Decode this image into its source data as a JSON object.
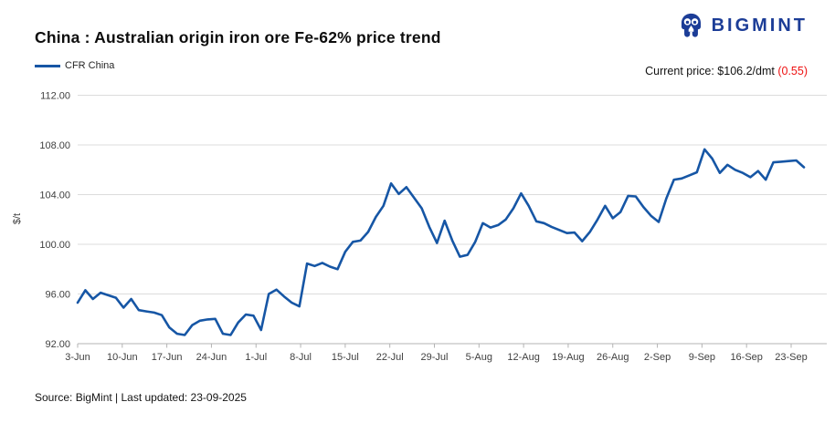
{
  "header": {
    "title": "China : Australian origin iron ore Fe-62% price trend",
    "brand": "BIGMINT"
  },
  "legend": {
    "series_label": "CFR China"
  },
  "current_price": {
    "text": "Current price: $106.2/dmt",
    "change": "(0.55)"
  },
  "footer": {
    "source": "Source: BigMint | Last updated: 23-09-2025"
  },
  "colors": {
    "line": "#1656a5",
    "brand_blue": "#1c3d97",
    "change_red": "#ee1111",
    "grid": "#dcdcdc",
    "axis_line": "#b3b3b3",
    "axis_text": "#404040"
  },
  "chart_data": {
    "type": "line",
    "title": "China : Australian origin iron ore Fe-62% price trend",
    "ylabel": "$/t",
    "ylim": [
      92,
      112
    ],
    "y_ticks": [
      112,
      108,
      104,
      100,
      96,
      92
    ],
    "grid": "horizontal",
    "legend_position": "top-left",
    "x_tick_labels": [
      "3-Jun",
      "10-Jun",
      "17-Jun",
      "24-Jun",
      "1-Jul",
      "8-Jul",
      "15-Jul",
      "22-Jul",
      "29-Jul",
      "5-Aug",
      "12-Aug",
      "19-Aug",
      "26-Aug",
      "2-Sep",
      "9-Sep",
      "16-Sep",
      "23-Sep"
    ],
    "series": [
      {
        "name": "CFR China",
        "values": [
          95.3,
          96.3,
          95.6,
          96.1,
          95.9,
          95.7,
          94.9,
          95.6,
          94.7,
          94.6,
          94.5,
          94.3,
          93.3,
          92.8,
          92.7,
          93.5,
          93.85,
          93.95,
          94.0,
          92.8,
          92.7,
          93.7,
          94.35,
          94.25,
          93.1,
          96.0,
          96.35,
          95.8,
          95.3,
          95.0,
          98.45,
          98.25,
          98.5,
          98.2,
          98.0,
          99.4,
          100.2,
          100.3,
          101.0,
          102.2,
          103.1,
          104.9,
          104.05,
          104.6,
          103.75,
          102.9,
          101.4,
          100.1,
          101.9,
          100.3,
          99.0,
          99.15,
          100.2,
          101.7,
          101.35,
          101.55,
          102.0,
          102.9,
          104.1,
          103.1,
          101.85,
          101.7,
          101.4,
          101.15,
          100.9,
          100.95,
          100.25,
          101.0,
          102.0,
          103.1,
          102.1,
          102.6,
          103.9,
          103.85,
          103.0,
          102.3,
          101.8,
          103.7,
          105.2,
          105.3,
          105.55,
          105.8,
          107.65,
          106.9,
          105.75,
          106.4,
          106.0,
          105.75,
          105.4,
          105.9,
          105.2,
          106.6,
          106.65,
          106.7,
          106.75,
          106.2
        ]
      }
    ]
  }
}
